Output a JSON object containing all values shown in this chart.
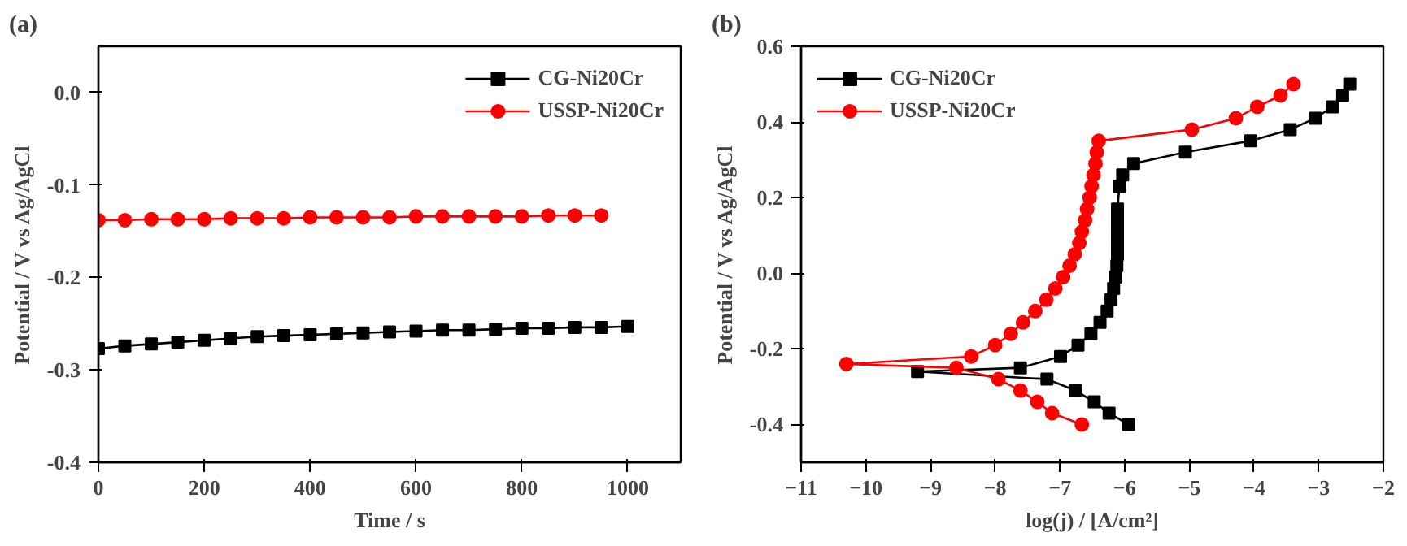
{
  "chart_data": [
    {
      "type": "line",
      "title": "(a)",
      "xlabel": "Time / s",
      "ylabel": "Potential / V vs Ag/AgCl",
      "xlim": [
        0,
        1100
      ],
      "ylim": [
        -0.4,
        0.05
      ],
      "xticks": [
        0,
        200,
        400,
        600,
        800,
        1000
      ],
      "yticks": [
        {
          "value": -0.4,
          "label": "-0.4"
        },
        {
          "value": -0.3,
          "label": "-0.3"
        },
        {
          "value": -0.2,
          "label": "-0.2"
        },
        {
          "value": -0.1,
          "label": "-0.1"
        },
        {
          "value": 0,
          "label": "0.0"
        }
      ],
      "grid": false,
      "legend": "top right",
      "line_style": "solid",
      "series": [
        {
          "name": "CG-Ni20Cr",
          "color": "#000000",
          "marker": "square",
          "x": [
            0,
            50,
            100,
            150,
            200,
            250,
            300,
            350,
            400,
            450,
            500,
            550,
            600,
            650,
            700,
            750,
            800,
            850,
            900,
            950,
            1000
          ],
          "values": [
            -0.277,
            -0.274,
            -0.272,
            -0.27,
            -0.268,
            -0.266,
            -0.264,
            -0.263,
            -0.262,
            -0.261,
            -0.26,
            -0.259,
            -0.258,
            -0.257,
            -0.257,
            -0.256,
            -0.255,
            -0.255,
            -0.254,
            -0.254,
            -0.253
          ]
        },
        {
          "name": "USSP-Ni20Cr",
          "color": "#ff0000",
          "marker": "circle",
          "x": [
            0,
            50,
            100,
            150,
            200,
            250,
            300,
            350,
            400,
            450,
            500,
            550,
            600,
            650,
            700,
            750,
            800,
            850,
            900,
            950
          ],
          "values": [
            -0.138,
            -0.138,
            -0.137,
            -0.137,
            -0.137,
            -0.136,
            -0.136,
            -0.136,
            -0.135,
            -0.135,
            -0.135,
            -0.135,
            -0.134,
            -0.134,
            -0.134,
            -0.134,
            -0.134,
            -0.133,
            -0.133,
            -0.133
          ]
        }
      ]
    },
    {
      "type": "line",
      "title": "(b)",
      "xlabel": "log(j) / [A/cm²]",
      "ylabel": "Potential / V vs Ag/AgCl",
      "xlim": [
        -11,
        -2
      ],
      "ylim": [
        -0.5,
        0.6
      ],
      "xticks": [
        -11,
        -10,
        -9,
        -8,
        -7,
        -6,
        -5,
        -4,
        -3,
        -2
      ],
      "yticks": [
        {
          "value": -0.4,
          "label": "-0.4"
        },
        {
          "value": -0.2,
          "label": "-0.2"
        },
        {
          "value": 0,
          "label": "0.0"
        },
        {
          "value": 0.2,
          "label": "0.2"
        },
        {
          "value": 0.4,
          "label": "0.4"
        },
        {
          "value": 0.6,
          "label": "0.6"
        }
      ],
      "grid": false,
      "legend": "top left",
      "line_style": "solid",
      "series": [
        {
          "name": "CG-Ni20Cr",
          "color": "#000000",
          "marker": "square",
          "x": [
            -5.94,
            -6.24,
            -6.47,
            -6.76,
            -7.2,
            -9.2,
            -7.61,
            -6.99,
            -6.72,
            -6.52,
            -6.38,
            -6.27,
            -6.21,
            -6.17,
            -6.14,
            -6.12,
            -6.11,
            -6.11,
            -6.11,
            -6.11,
            -6.11,
            -6.08,
            -6.03,
            -5.86,
            -5.06,
            -4.05,
            -3.44,
            -3.05,
            -2.79,
            -2.63,
            -2.52
          ],
          "values": [
            -0.4,
            -0.37,
            -0.34,
            -0.31,
            -0.28,
            -0.26,
            -0.25,
            -0.22,
            -0.19,
            -0.16,
            -0.13,
            -0.1,
            -0.07,
            -0.04,
            -0.01,
            0.02,
            0.05,
            0.08,
            0.11,
            0.14,
            0.17,
            0.23,
            0.26,
            0.29,
            0.32,
            0.35,
            0.38,
            0.41,
            0.44,
            0.47,
            0.5
          ]
        },
        {
          "name": "USSP-Ni20Cr",
          "color": "#ff0000",
          "marker": "circle",
          "x": [
            -6.66,
            -7.12,
            -7.35,
            -7.61,
            -7.95,
            -8.6,
            -10.3,
            -8.37,
            -8.0,
            -7.76,
            -7.57,
            -7.38,
            -7.21,
            -7.07,
            -6.95,
            -6.85,
            -6.77,
            -6.7,
            -6.66,
            -6.61,
            -6.58,
            -6.54,
            -6.51,
            -6.48,
            -6.45,
            -6.43,
            -6.4,
            -4.96,
            -4.28,
            -3.95,
            -3.59,
            -3.39
          ],
          "values": [
            -0.4,
            -0.37,
            -0.34,
            -0.31,
            -0.28,
            -0.25,
            -0.24,
            -0.22,
            -0.19,
            -0.16,
            -0.13,
            -0.1,
            -0.07,
            -0.04,
            -0.01,
            0.02,
            0.05,
            0.08,
            0.11,
            0.14,
            0.17,
            0.2,
            0.23,
            0.26,
            0.29,
            0.32,
            0.35,
            0.38,
            0.41,
            0.44,
            0.47,
            0.5
          ]
        }
      ]
    }
  ]
}
